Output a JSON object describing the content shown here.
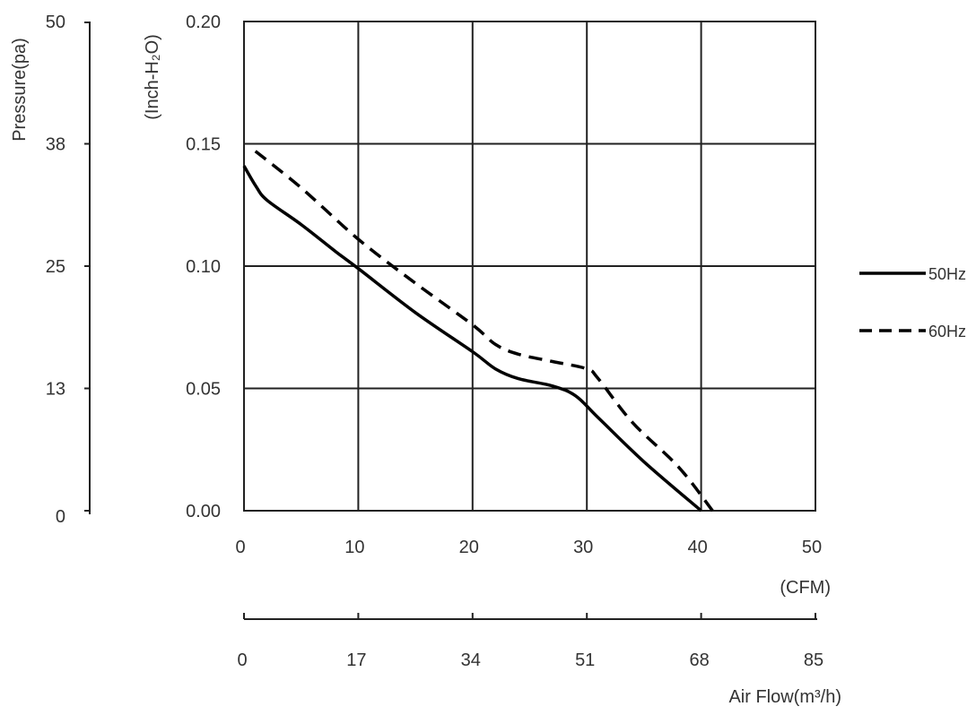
{
  "chart_data": {
    "type": "line",
    "title": "",
    "x_axis": {
      "unit_label": "(CFM)",
      "range": [
        0,
        50
      ],
      "ticks": [
        0,
        10,
        20,
        30,
        40,
        50
      ],
      "tick_labels": [
        "0",
        "10",
        "20",
        "30",
        "40",
        "50"
      ]
    },
    "x2_axis": {
      "label": "Air Flow(m³/h)",
      "range": [
        0,
        85
      ],
      "ticks": [
        0,
        17,
        34,
        51,
        68,
        85
      ],
      "tick_labels": [
        "0",
        "17",
        "34",
        "51",
        "68",
        "85"
      ]
    },
    "y_axis": {
      "label": "(Inch-H₂O)",
      "range": [
        0,
        0.2
      ],
      "ticks": [
        0,
        0.05,
        0.1,
        0.15,
        0.2
      ],
      "tick_labels": [
        "0.00",
        "0.05",
        "0.10",
        "0.15",
        "0.20"
      ]
    },
    "y2_axis": {
      "label": "Pressure(pa)",
      "range": [
        0,
        50
      ],
      "ticks": [
        0,
        12.5,
        25,
        37.5,
        50
      ],
      "tick_labels": [
        "0",
        "13",
        "25",
        "38",
        "50"
      ]
    },
    "grid": true,
    "legend_position": "right",
    "series": [
      {
        "name": "50Hz",
        "style": "solid",
        "color": "#000000",
        "x": [
          0,
          1,
          2,
          5,
          8,
          10,
          15,
          20,
          22,
          24,
          27,
          29,
          31,
          35,
          40
        ],
        "y": [
          0.141,
          0.133,
          0.127,
          0.117,
          0.106,
          0.099,
          0.081,
          0.065,
          0.058,
          0.054,
          0.051,
          0.047,
          0.038,
          0.02,
          0.0
        ]
      },
      {
        "name": "60Hz",
        "style": "dashed",
        "color": "#000000",
        "x": [
          1,
          5,
          10,
          15,
          20,
          22,
          24,
          27,
          30,
          31,
          34,
          38,
          41
        ],
        "y": [
          0.147,
          0.132,
          0.111,
          0.093,
          0.076,
          0.068,
          0.064,
          0.061,
          0.058,
          0.054,
          0.036,
          0.018,
          0.0
        ]
      }
    ]
  }
}
